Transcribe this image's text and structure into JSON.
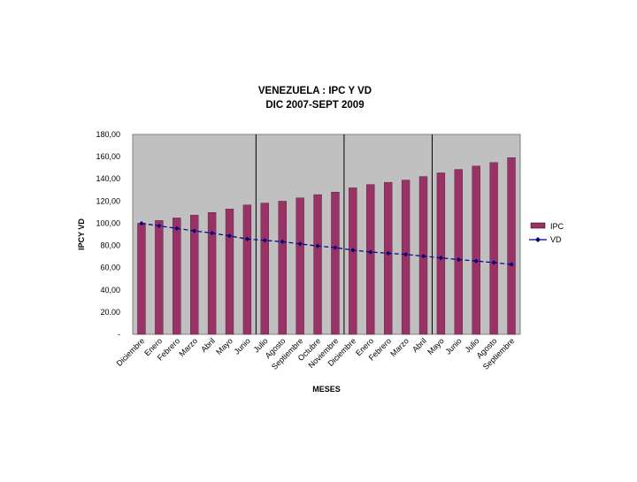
{
  "chart_data": {
    "type": "bar",
    "title": [
      "VENEZUELA : IPC Y VD",
      "DIC 2007-SEPT 2009"
    ],
    "xlabel": "MESES",
    "ylabel": "IPCY VD",
    "ylim": [
      0,
      180
    ],
    "ytick_values": [
      0,
      20,
      40,
      60,
      80,
      100,
      120,
      140,
      160,
      180
    ],
    "ytick_labels": [
      "-",
      "20.00",
      "40,00",
      "60,00",
      "80,00",
      "100,00",
      "120,00",
      "140,00",
      "160,00",
      "180,00"
    ],
    "categories": [
      "Diciembre",
      "Enero",
      "Febrero",
      "Marzo",
      "Abril",
      "Mayo",
      "Junio",
      "Julio",
      "Agosto",
      "Septiembre",
      "Octubre",
      "Noviembre",
      "Diciembre",
      "Enero",
      "Febrero",
      "Marzo",
      "Abril",
      "Mayo",
      "Junio",
      "Julio",
      "Agosto",
      "Septiembre"
    ],
    "year_separators_after_index": [
      6,
      11,
      16
    ],
    "series": [
      {
        "name": "IPC",
        "kind": "bar",
        "color": "#993366",
        "values": [
          100,
          102.5,
          104.8,
          107.4,
          109.7,
          112.9,
          116.5,
          118.2,
          119.9,
          122.9,
          125.8,
          128.1,
          131.9,
          134.9,
          136.9,
          138.9,
          142.1,
          145.4,
          148.5,
          151.6,
          154.7,
          159.1
        ]
      },
      {
        "name": "VD",
        "kind": "line",
        "color": "#000080",
        "line_style": "dashed",
        "marker": "diamond",
        "values": [
          100,
          97.6,
          95.4,
          93.1,
          91.2,
          88.6,
          85.8,
          84.6,
          83.4,
          81.4,
          79.5,
          78.1,
          75.8,
          74.1,
          73.0,
          72.0,
          70.4,
          68.8,
          67.3,
          66.0,
          64.6,
          62.9
        ]
      }
    ],
    "legend_position": "right",
    "plot_background": "#c0c0c0",
    "grid": false
  }
}
